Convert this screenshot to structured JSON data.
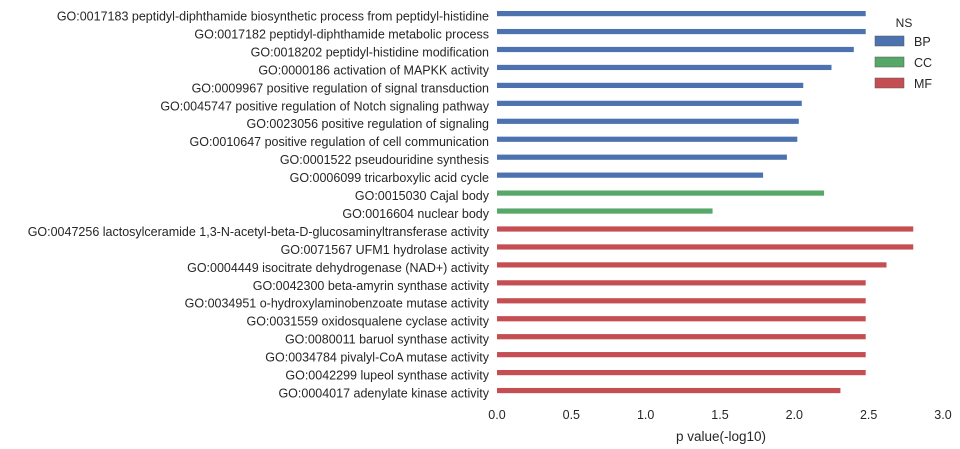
{
  "chart_data": {
    "type": "bar",
    "orientation": "horizontal",
    "xlabel": "p value(-log10)",
    "xlim": [
      0.0,
      3.0
    ],
    "xticks": [
      "0.0",
      "0.5",
      "1.0",
      "1.5",
      "2.0",
      "2.5",
      "3.0"
    ],
    "grid": false,
    "legend": {
      "title": "NS",
      "placement": "top-right",
      "entries": [
        {
          "name": "BP",
          "color": "#4c72b0"
        },
        {
          "name": "CC",
          "color": "#55a868"
        },
        {
          "name": "MF",
          "color": "#c44e52"
        }
      ]
    },
    "categories": [
      {
        "label": "GO:0017183 peptidyl-diphthamide biosynthetic process from peptidyl-histidine",
        "ns": "BP",
        "value": 2.48
      },
      {
        "label": "GO:0017182 peptidyl-diphthamide metabolic process",
        "ns": "BP",
        "value": 2.48
      },
      {
        "label": "GO:0018202 peptidyl-histidine modification",
        "ns": "BP",
        "value": 2.4
      },
      {
        "label": "GO:0000186 activation of MAPKK activity",
        "ns": "BP",
        "value": 2.25
      },
      {
        "label": "GO:0009967 positive regulation of signal transduction",
        "ns": "BP",
        "value": 2.06
      },
      {
        "label": "GO:0045747 positive regulation of Notch signaling pathway",
        "ns": "BP",
        "value": 2.05
      },
      {
        "label": "GO:0023056 positive regulation of signaling",
        "ns": "BP",
        "value": 2.03
      },
      {
        "label": "GO:0010647 positive regulation of cell communication",
        "ns": "BP",
        "value": 2.02
      },
      {
        "label": "GO:0001522 pseudouridine synthesis",
        "ns": "BP",
        "value": 1.95
      },
      {
        "label": "GO:0006099 tricarboxylic acid cycle",
        "ns": "BP",
        "value": 1.79
      },
      {
        "label": "GO:0015030 Cajal body",
        "ns": "CC",
        "value": 2.2
      },
      {
        "label": "GO:0016604 nuclear body",
        "ns": "CC",
        "value": 1.45
      },
      {
        "label": "GO:0047256 lactosylceramide 1,3-N-acetyl-beta-D-glucosaminyltransferase activity",
        "ns": "MF",
        "value": 2.8
      },
      {
        "label": "GO:0071567 UFM1 hydrolase activity",
        "ns": "MF",
        "value": 2.8
      },
      {
        "label": "GO:0004449 isocitrate dehydrogenase (NAD+) activity",
        "ns": "MF",
        "value": 2.62
      },
      {
        "label": "GO:0042300 beta-amyrin synthase activity",
        "ns": "MF",
        "value": 2.48
      },
      {
        "label": "GO:0034951 o-hydroxylaminobenzoate mutase activity",
        "ns": "MF",
        "value": 2.48
      },
      {
        "label": "GO:0031559 oxidosqualene cyclase activity",
        "ns": "MF",
        "value": 2.48
      },
      {
        "label": "GO:0080011 baruol synthase activity",
        "ns": "MF",
        "value": 2.48
      },
      {
        "label": "GO:0034784 pivalyl-CoA mutase activity",
        "ns": "MF",
        "value": 2.48
      },
      {
        "label": "GO:0042299 lupeol synthase activity",
        "ns": "MF",
        "value": 2.48
      },
      {
        "label": "GO:0004017 adenylate kinase activity",
        "ns": "MF",
        "value": 2.31
      }
    ]
  }
}
